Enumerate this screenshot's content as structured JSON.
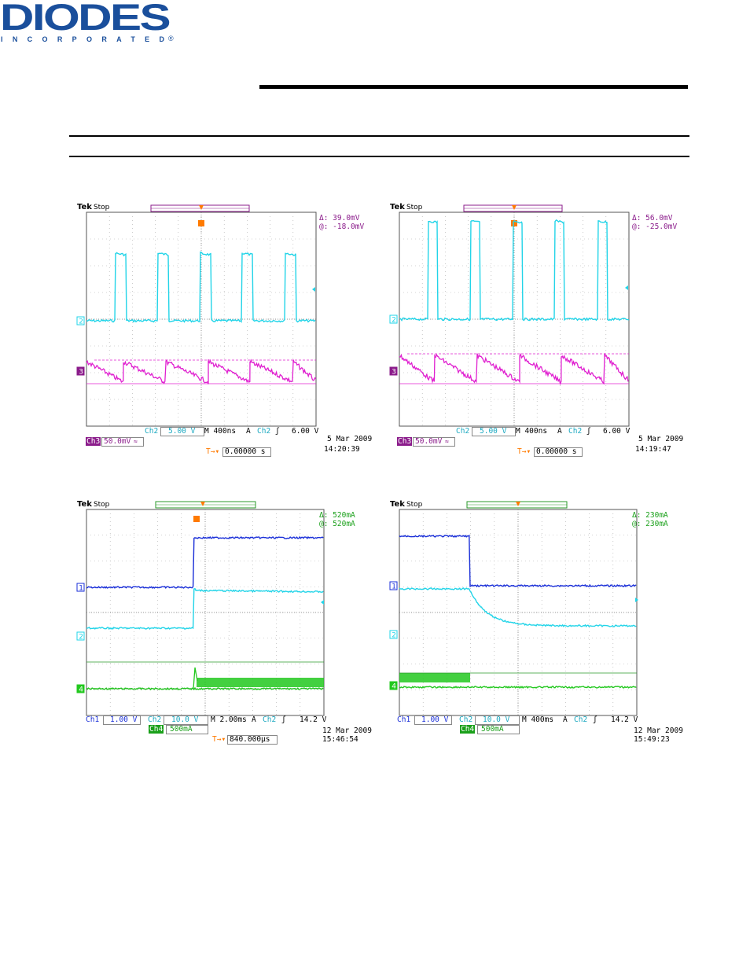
{
  "header": {
    "brand": "DIODES",
    "subtitle": "INCORPORATED",
    "registered": "®"
  },
  "colors": {
    "brand_blue": "#1a4f9c",
    "cyan": "#22d4e8",
    "magenta": "#e020d0",
    "blue": "#1a2fd8",
    "green": "#22c81e",
    "orange": "#ff7a00",
    "purple": "#8b1c8b"
  },
  "scopes": [
    {
      "name": "scope-1",
      "tek": "Tek",
      "stop": "Stop",
      "cursor_delta": "Δ:  39.0mV",
      "cursor_at": "@: -18.0mV",
      "ch_a_label": "Ch2",
      "ch_a_value": "5.00 V",
      "timebase": "M 400ns",
      "trig_mode": "A",
      "trig_ch": "Ch2",
      "trig_level": "6.00 V",
      "ch_b_label": "Ch3",
      "ch_b_value": "50.0mV",
      "trig_pos": "0.00000 s",
      "date": "5 Mar  2009",
      "time": "14:20:39",
      "markers": [
        "2",
        "3"
      ]
    },
    {
      "name": "scope-2",
      "tek": "Tek",
      "stop": "Stop",
      "cursor_delta": "Δ:  56.0mV",
      "cursor_at": "@: -25.0mV",
      "ch_a_label": "Ch2",
      "ch_a_value": "5.00 V",
      "timebase": "M 400ns",
      "trig_mode": "A",
      "trig_ch": "Ch2",
      "trig_level": "6.00 V",
      "ch_b_label": "Ch3",
      "ch_b_value": "50.0mV",
      "trig_pos": "0.00000 s",
      "date": "5 Mar  2009",
      "time": "14:19:47",
      "markers": [
        "2",
        "3"
      ]
    },
    {
      "name": "scope-3",
      "tek": "Tek",
      "stop": "Stop",
      "cursor_delta": "Δ:  520mA",
      "cursor_at": "@:  520mA",
      "ch_1_label": "Ch1",
      "ch_1_value": "1.00 V",
      "ch_a_label": "Ch2",
      "ch_a_value": "10.0 V",
      "timebase": "M 2.00ms",
      "trig_mode": "A",
      "trig_ch": "Ch2",
      "trig_level": "14.2 V",
      "ch_b_label": "Ch4",
      "ch_b_value": "500mA",
      "trig_pos": "840.000μs",
      "date": "12 Mar  2009",
      "time": "15:46:54",
      "markers": [
        "1",
        "2",
        "4"
      ]
    },
    {
      "name": "scope-4",
      "tek": "Tek",
      "stop": "Stop",
      "cursor_delta": "Δ:  230mA",
      "cursor_at": "@:  230mA",
      "ch_1_label": "Ch1",
      "ch_1_value": "1.00 V",
      "ch_a_label": "Ch2",
      "ch_a_value": "10.0 V",
      "timebase": "M 400ms",
      "trig_mode": "A",
      "trig_ch": "Ch2",
      "trig_level": "14.2 V",
      "ch_b_label": "Ch4",
      "ch_b_value": "500mA",
      "date": "12 Mar  2009",
      "time": "15:49:23",
      "markers": [
        "1",
        "2",
        "4"
      ]
    }
  ]
}
